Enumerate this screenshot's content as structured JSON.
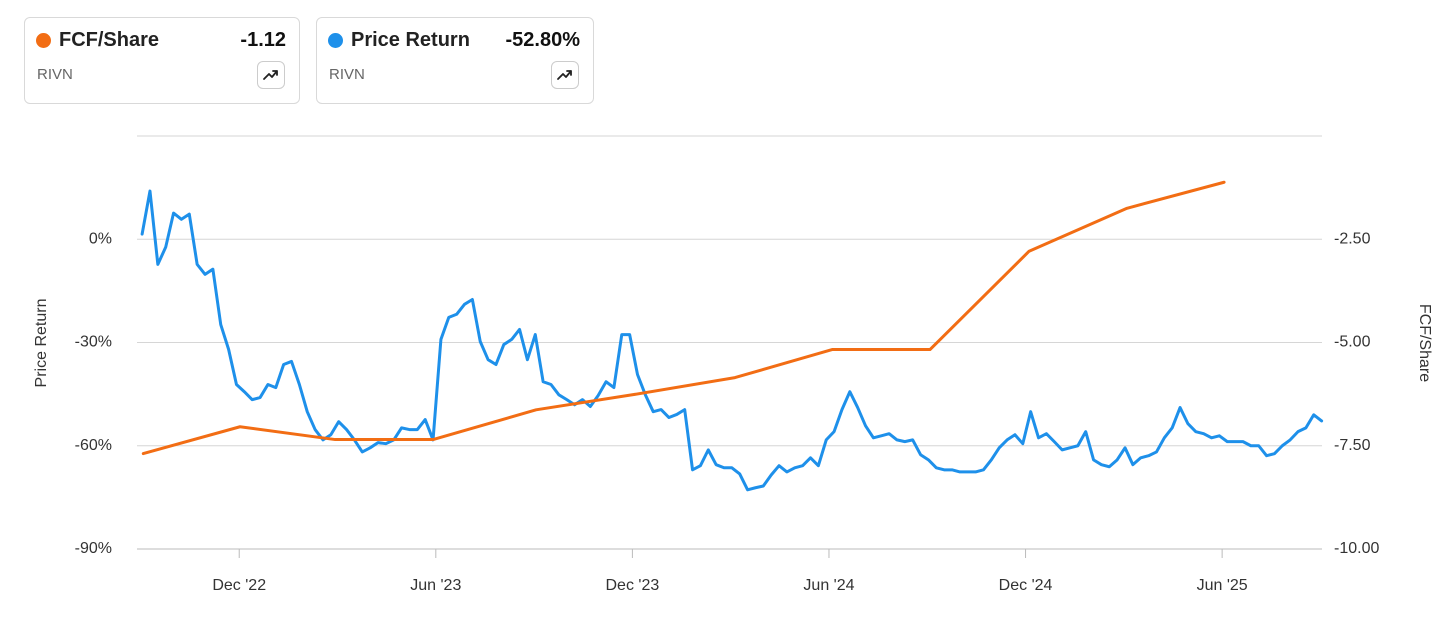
{
  "chart_data": {
    "type": "line",
    "ylabel": "Price Return",
    "y2label": "FCF/Share",
    "xlim": [
      2022.657,
      2025.671
    ],
    "xticks": [
      {
        "value": 2022.917,
        "label": "Dec '22"
      },
      {
        "value": 2023.417,
        "label": "Jun '23"
      },
      {
        "value": 2023.917,
        "label": "Dec '23"
      },
      {
        "value": 2024.417,
        "label": "Jun '24"
      },
      {
        "value": 2024.917,
        "label": "Dec '24"
      },
      {
        "value": 2025.417,
        "label": "Jun '25"
      }
    ],
    "ylim": [
      -90,
      30
    ],
    "yticks": [
      {
        "value": 0,
        "label": "0%"
      },
      {
        "value": -30,
        "label": "-30%"
      },
      {
        "value": -60,
        "label": "-60%"
      },
      {
        "value": -90,
        "label": "-90%"
      }
    ],
    "y2lim": [
      -10,
      0
    ],
    "y2ticks": [
      {
        "value": -2.5,
        "label": "-2.50"
      },
      {
        "value": -5,
        "label": "-5.00"
      },
      {
        "value": -7.5,
        "label": "-7.50"
      },
      {
        "value": -10,
        "label": "-10.00"
      }
    ],
    "grid": true,
    "series": [
      {
        "name": "FCF/Share",
        "ticker": "RIVN",
        "latest_label": "-1.12",
        "color": "#f26d14",
        "axis": "y2",
        "x": [
          2022.673,
          2022.919,
          2023.161,
          2023.41,
          2023.672,
          2023.921,
          2024.178,
          2024.425,
          2024.674,
          2024.926,
          2025.175,
          2025.422
        ],
        "values": [
          -7.69,
          -7.04,
          -7.35,
          -7.35,
          -6.63,
          -6.26,
          -5.85,
          -5.17,
          -5.17,
          -2.79,
          -1.75,
          -1.12
        ]
      },
      {
        "name": "Price Return",
        "ticker": "RIVN",
        "latest_label": "-52.80%",
        "color": "#1e90ea",
        "axis": "y",
        "x": [
          2022.67,
          2022.69,
          2022.71,
          2022.73,
          2022.75,
          2022.77,
          2022.79,
          2022.81,
          2022.83,
          2022.85,
          2022.87,
          2022.89,
          2022.91,
          2022.93,
          2022.95,
          2022.97,
          2022.99,
          2023.01,
          2023.03,
          2023.05,
          2023.07,
          2023.09,
          2023.11,
          2023.13,
          2023.15,
          2023.17,
          2023.19,
          2023.21,
          2023.23,
          2023.25,
          2023.27,
          2023.29,
          2023.31,
          2023.33,
          2023.35,
          2023.37,
          2023.39,
          2023.41,
          2023.43,
          2023.45,
          2023.47,
          2023.49,
          2023.51,
          2023.53,
          2023.55,
          2023.57,
          2023.59,
          2023.61,
          2023.63,
          2023.65,
          2023.67,
          2023.69,
          2023.71,
          2023.73,
          2023.75,
          2023.77,
          2023.79,
          2023.81,
          2023.83,
          2023.85,
          2023.87,
          2023.89,
          2023.91,
          2023.93,
          2023.95,
          2023.97,
          2023.99,
          2024.01,
          2024.03,
          2024.05,
          2024.07,
          2024.09,
          2024.11,
          2024.13,
          2024.15,
          2024.17,
          2024.19,
          2024.21,
          2024.23,
          2024.25,
          2024.27,
          2024.29,
          2024.31,
          2024.33,
          2024.35,
          2024.37,
          2024.39,
          2024.41,
          2024.43,
          2024.45,
          2024.47,
          2024.49,
          2024.51,
          2024.53,
          2024.55,
          2024.57,
          2024.59,
          2024.61,
          2024.63,
          2024.65,
          2024.67,
          2024.69,
          2024.71,
          2024.73,
          2024.75,
          2024.77,
          2024.79,
          2024.81,
          2024.83,
          2024.85,
          2024.87,
          2024.89,
          2024.91,
          2024.93,
          2024.95,
          2024.97,
          2024.99,
          2025.01,
          2025.03,
          2025.05,
          2025.07,
          2025.09,
          2025.11,
          2025.13,
          2025.15,
          2025.17,
          2025.19,
          2025.21,
          2025.23,
          2025.25,
          2025.27,
          2025.29,
          2025.31,
          2025.33,
          2025.35,
          2025.37,
          2025.39,
          2025.41,
          2025.43,
          2025.45,
          2025.47,
          2025.49,
          2025.51,
          2025.53,
          2025.55,
          2025.57,
          2025.59,
          2025.61,
          2025.63,
          2025.65,
          2025.67
        ],
        "values": [
          1.5,
          14.0,
          -7.3,
          -2.3,
          7.6,
          5.8,
          7.3,
          -7.3,
          -10.2,
          -8.7,
          -24.8,
          -32.0,
          -42.2,
          -44.3,
          -46.6,
          -46.0,
          -42.2,
          -43.1,
          -36.4,
          -35.5,
          -42.2,
          -50.1,
          -55.3,
          -58.3,
          -56.8,
          -53.0,
          -55.3,
          -58.3,
          -61.8,
          -60.6,
          -59.1,
          -59.4,
          -58.3,
          -54.8,
          -55.3,
          -55.3,
          -52.4,
          -58.3,
          -29.1,
          -22.7,
          -21.8,
          -18.9,
          -17.5,
          -29.7,
          -35.0,
          -36.4,
          -30.6,
          -29.1,
          -26.2,
          -35.0,
          -27.7,
          -41.4,
          -42.2,
          -45.2,
          -46.6,
          -48.1,
          -46.6,
          -48.6,
          -45.4,
          -41.4,
          -43.1,
          -27.7,
          -27.7,
          -39.3,
          -45.2,
          -50.1,
          -49.5,
          -51.8,
          -50.9,
          -49.5,
          -67.0,
          -65.8,
          -61.2,
          -65.5,
          -66.4,
          -66.4,
          -68.2,
          -72.8,
          -72.2,
          -71.7,
          -68.5,
          -65.8,
          -67.6,
          -66.4,
          -65.8,
          -63.5,
          -65.8,
          -58.3,
          -55.9,
          -49.5,
          -44.3,
          -48.9,
          -54.2,
          -57.7,
          -57.1,
          -56.5,
          -58.3,
          -58.8,
          -58.3,
          -62.6,
          -64.1,
          -66.4,
          -67.0,
          -67.0,
          -67.6,
          -67.6,
          -67.6,
          -67.0,
          -64.1,
          -60.6,
          -58.3,
          -56.8,
          -59.4,
          -50.1,
          -57.7,
          -56.5,
          -58.8,
          -61.2,
          -60.6,
          -60.0,
          -55.9,
          -64.1,
          -65.5,
          -66.1,
          -64.1,
          -60.6,
          -65.5,
          -63.5,
          -62.9,
          -61.8,
          -57.7,
          -54.8,
          -48.9,
          -53.6,
          -55.9,
          -56.5,
          -57.7,
          -57.1,
          -58.8,
          -58.8,
          -58.8,
          -60.0,
          -60.0,
          -62.9,
          -62.3,
          -60.0,
          -58.3,
          -55.9,
          -54.8,
          -51.0,
          -52.8
        ]
      }
    ]
  }
}
